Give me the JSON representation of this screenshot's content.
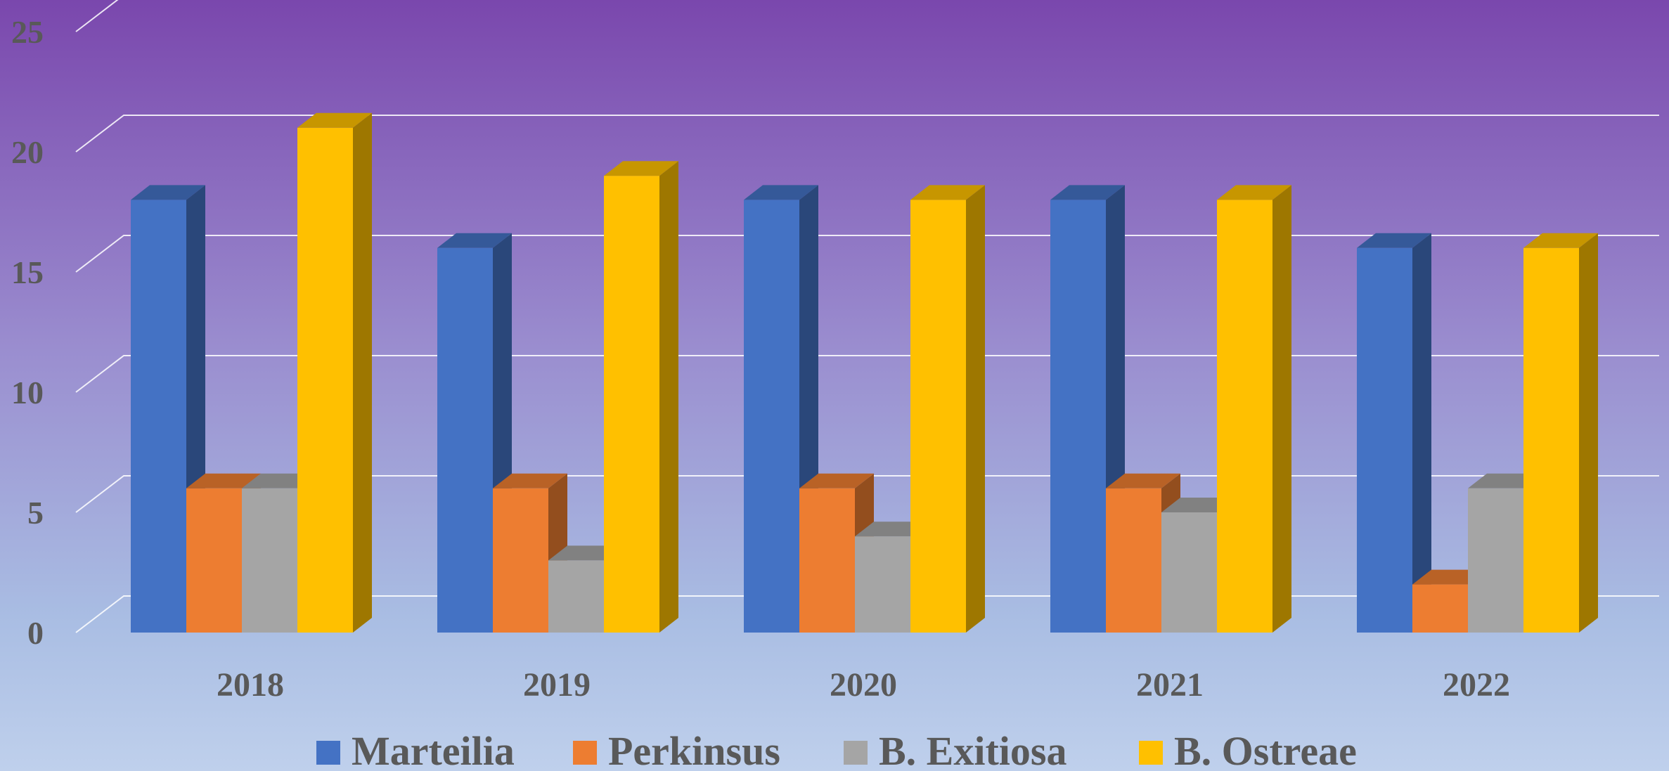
{
  "chart_data": {
    "type": "bar",
    "style": "3d-clustered-column",
    "categories": [
      "2018",
      "2019",
      "2020",
      "2021",
      "2022"
    ],
    "series": [
      {
        "name": "Marteilia",
        "color": "#4472c4",
        "values": [
          18,
          16,
          18,
          18,
          16
        ]
      },
      {
        "name": "Perkinsus",
        "color": "#ed7d31",
        "values": [
          6,
          6,
          6,
          6,
          2
        ]
      },
      {
        "name": "B. Exitiosa",
        "color": "#a5a5a5",
        "values": [
          6,
          3,
          4,
          5,
          6
        ]
      },
      {
        "name": "B. Ostreae",
        "color": "#ffc000",
        "values": [
          21,
          19,
          18,
          18,
          16
        ]
      }
    ],
    "y_ticks": [
      0,
      5,
      10,
      15,
      20,
      25
    ],
    "ylim": [
      0,
      25
    ],
    "grid": true,
    "legend": "bottom"
  }
}
